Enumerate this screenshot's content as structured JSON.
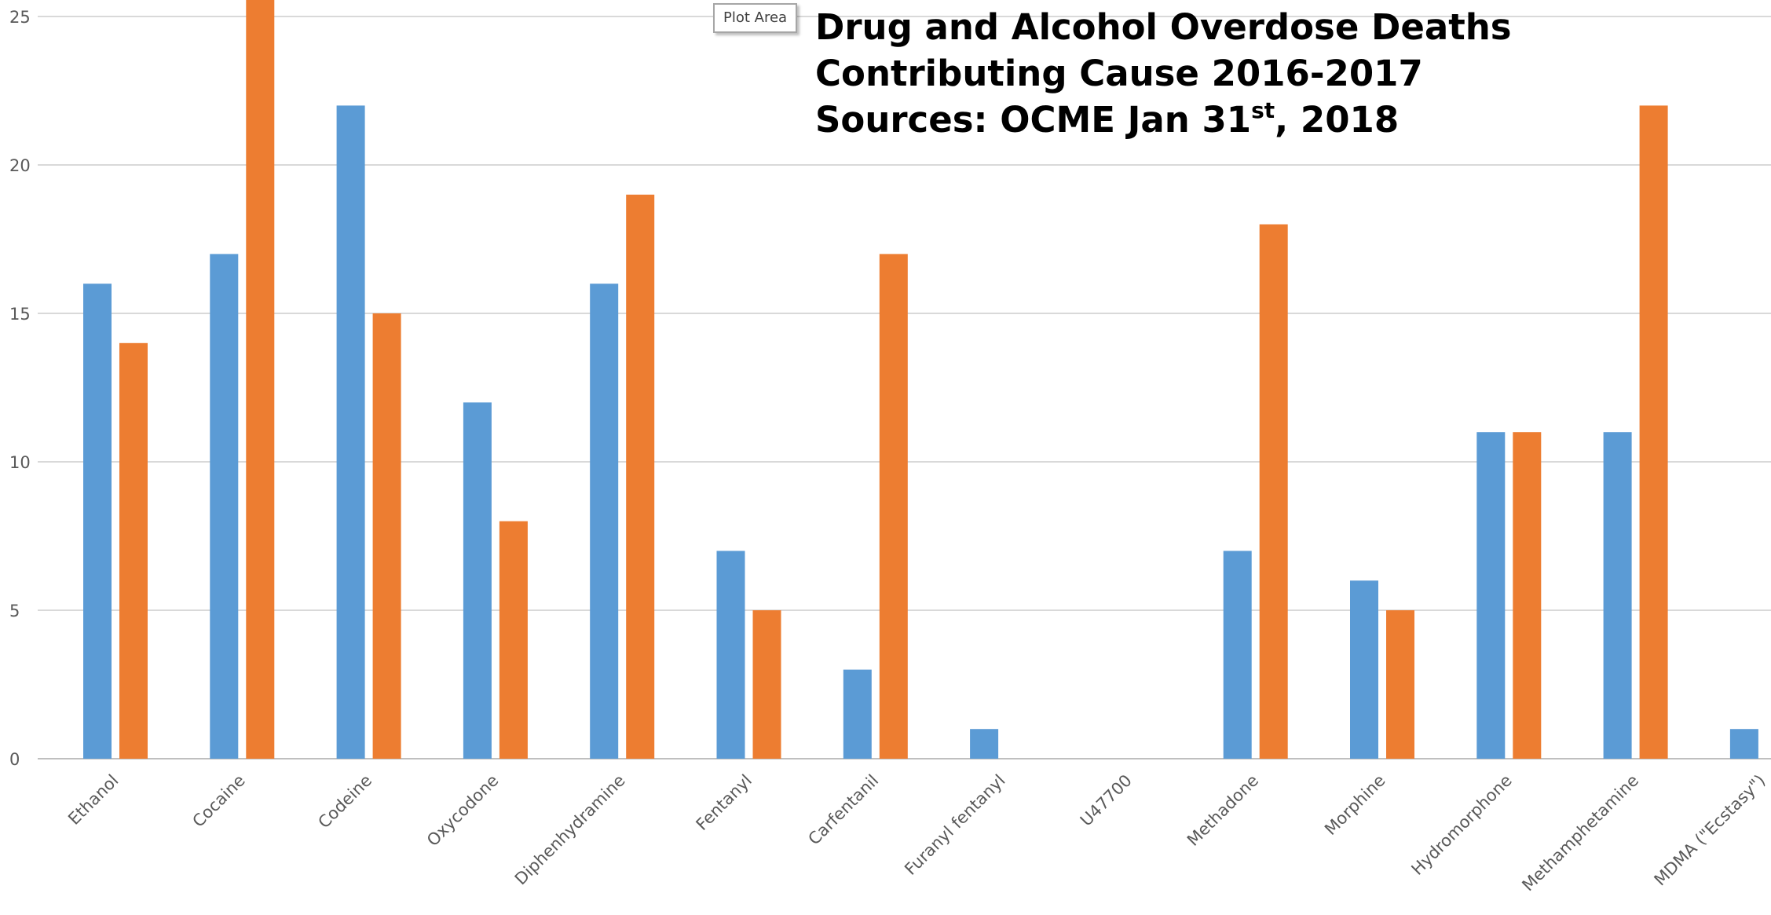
{
  "tooltip": "Plot Area",
  "chart_data": {
    "type": "bar",
    "title_lines": [
      "Drug and Alcohol Overdose Deaths",
      "Contributing Cause 2016-2017"
    ],
    "sources_line": {
      "prefix": "Sources: OCME Jan 31",
      "sup": "st",
      "suffix": ", 2018"
    },
    "categories": [
      "Ethanol",
      "Cocaine",
      "Codeine",
      "Oxycodone",
      "Diphenhydramine",
      "Fentanyl",
      "Carfentanil",
      "Furanyl fentanyl",
      "U47700",
      "Methadone",
      "Morphine",
      "Hydromorphone",
      "Methamphetamine",
      "MDMA (\"Ecstasy\")"
    ],
    "series": [
      {
        "color": "#5b9bd5",
        "values": [
          16,
          17,
          22,
          12,
          16,
          7,
          3,
          1,
          0,
          7,
          6,
          11,
          11,
          1
        ]
      },
      {
        "color": "#ed7d31",
        "values": [
          14,
          26,
          15,
          8,
          19,
          5,
          17,
          0,
          0,
          18,
          5,
          11,
          22,
          0
        ]
      }
    ],
    "y_ticks": [
      0,
      5,
      10,
      15,
      20,
      25
    ],
    "ylim": [
      0,
      25
    ],
    "grid": true,
    "legend": "none"
  }
}
